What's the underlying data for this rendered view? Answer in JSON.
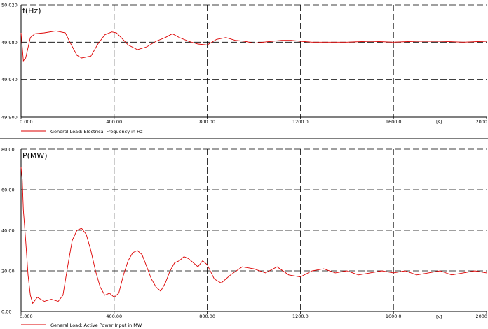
{
  "chart_data": [
    {
      "type": "line",
      "ylabel": "f(Hz)",
      "xunit_label": "[s]",
      "xlim": [
        0,
        2000
      ],
      "ylim": [
        49.9,
        50.02
      ],
      "xticks": [
        "0.000",
        "400.00",
        "800.00",
        "1200.0",
        "1600.0",
        "2000"
      ],
      "yticks": [
        "49.900",
        "49.940",
        "49.980",
        "50.020"
      ],
      "grid": true,
      "color": "#dd0000",
      "series": [
        {
          "name": "General Load: Electrical Frequency in Hz",
          "x": [
            0,
            5,
            10,
            20,
            40,
            60,
            100,
            150,
            190,
            210,
            240,
            260,
            300,
            330,
            360,
            390,
            410,
            430,
            460,
            500,
            540,
            580,
            620,
            650,
            680,
            720,
            760,
            800,
            840,
            880,
            920,
            960,
            1000,
            1040,
            1080,
            1120,
            1160,
            1200,
            1250,
            1300,
            1400,
            1500,
            1600,
            1700,
            1800,
            1900,
            2000
          ],
          "y": [
            49.99,
            49.975,
            49.96,
            49.963,
            49.985,
            49.989,
            49.99,
            49.992,
            49.99,
            49.98,
            49.966,
            49.963,
            49.965,
            49.978,
            49.988,
            49.991,
            49.99,
            49.985,
            49.977,
            49.972,
            49.975,
            49.981,
            49.985,
            49.989,
            49.985,
            49.981,
            49.978,
            49.977,
            49.983,
            49.985,
            49.982,
            49.981,
            49.979,
            49.98,
            49.981,
            49.982,
            49.982,
            49.981,
            49.98,
            49.98,
            49.98,
            49.981,
            49.98,
            49.981,
            49.981,
            49.98,
            49.981
          ]
        }
      ]
    },
    {
      "type": "line",
      "ylabel": "P(MW)",
      "xunit_label": "[s]",
      "xlim": [
        0,
        2000
      ],
      "ylim": [
        0,
        80
      ],
      "xticks": [
        "0.000",
        "400.00",
        "800.00",
        "1200.0",
        "1600.0",
        "2000"
      ],
      "yticks": [
        "0.00",
        "20.00",
        "40.00",
        "60.00",
        "80.00"
      ],
      "grid": true,
      "color": "#dd0000",
      "series": [
        {
          "name": "General Load: Active Power Input in MW",
          "x": [
            0,
            5,
            10,
            20,
            30,
            40,
            50,
            70,
            100,
            130,
            160,
            180,
            200,
            220,
            240,
            260,
            280,
            300,
            320,
            340,
            360,
            380,
            400,
            420,
            440,
            460,
            480,
            500,
            520,
            540,
            560,
            580,
            600,
            620,
            640,
            660,
            680,
            700,
            720,
            740,
            760,
            780,
            800,
            830,
            860,
            900,
            950,
            1000,
            1050,
            1100,
            1150,
            1200,
            1250,
            1300,
            1350,
            1400,
            1450,
            1500,
            1550,
            1600,
            1650,
            1700,
            1750,
            1800,
            1850,
            1900,
            1950,
            2000
          ],
          "y": [
            71,
            65,
            50,
            35,
            18,
            8,
            4,
            7,
            5,
            6,
            5,
            8,
            22,
            35,
            40,
            41,
            38,
            30,
            20,
            12,
            8,
            9,
            7,
            9,
            18,
            25,
            29,
            30,
            28,
            22,
            16,
            12,
            10,
            14,
            20,
            24,
            25,
            27,
            26,
            24,
            22,
            25,
            23,
            16,
            14,
            18,
            22,
            21,
            19,
            22,
            18,
            17,
            20,
            21,
            19,
            20,
            18,
            19,
            20,
            19,
            20,
            18,
            19,
            20,
            18,
            19,
            20,
            19
          ]
        }
      ]
    }
  ]
}
